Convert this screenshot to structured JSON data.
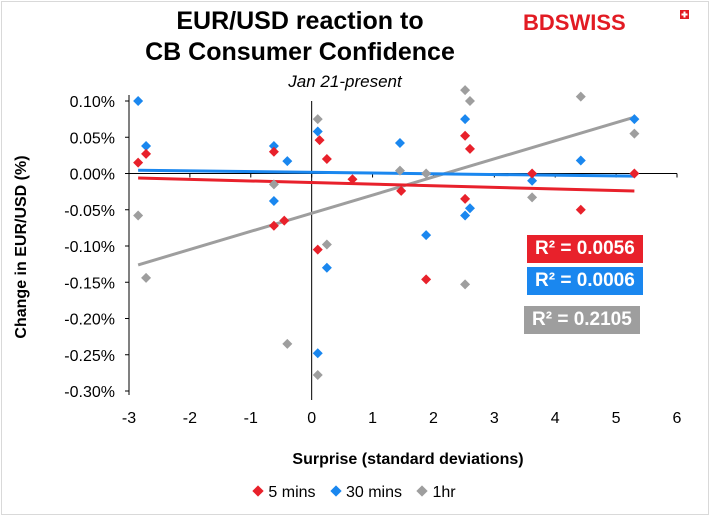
{
  "title_line1": "EUR/USD reaction to",
  "title_line2": "CB Consumer Confidence",
  "subtitle": "Jan 21-present",
  "logo": "BDSWISS",
  "colors": {
    "5 mins": "#e8212b",
    "30 mins": "#1a87ef",
    "1hr": "#9e9e9e",
    "logo": "#e21b23"
  },
  "r2_labels": [
    "R² = 0.0056",
    "R² = 0.0006",
    "R² = 0.2105"
  ],
  "legend": [
    "5 mins",
    "30 mins",
    "1hr"
  ],
  "chart_data": {
    "type": "scatter",
    "title": "EUR/USD reaction to CB Consumer Confidence",
    "subtitle": "Jan 21-present",
    "xlabel": "Surprise (standard deviations)",
    "ylabel": "Change in EUR/USD  (%)",
    "xlim": [
      -3,
      6
    ],
    "ylim": [
      -0.3,
      0.1
    ],
    "xticks": [
      "-3",
      "-2",
      "-1",
      "0",
      "1",
      "2",
      "3",
      "4",
      "5",
      "6"
    ],
    "yticks": [
      "0.10%",
      "0.05%",
      "0.00%",
      "-0.05%",
      "-0.10%",
      "-0.15%",
      "-0.20%",
      "-0.25%",
      "-0.30%"
    ],
    "legend_position": "bottom",
    "grid": false,
    "series": [
      {
        "name": "5 mins",
        "points": [
          [
            -2.85,
            0.015
          ],
          [
            -2.72,
            0.027
          ],
          [
            -0.62,
            0.03
          ],
          [
            -0.62,
            -0.072
          ],
          [
            -0.45,
            -0.065
          ],
          [
            0.1,
            -0.105
          ],
          [
            0.13,
            0.046
          ],
          [
            0.25,
            0.02
          ],
          [
            0.67,
            -0.008
          ],
          [
            1.47,
            -0.024
          ],
          [
            1.88,
            -0.146
          ],
          [
            2.52,
            0.052
          ],
          [
            2.52,
            -0.035
          ],
          [
            2.6,
            0.034
          ],
          [
            3.62,
            0.0
          ],
          [
            4.42,
            -0.05
          ],
          [
            5.3,
            0.0
          ]
        ],
        "trendline": {
          "intercept": -0.0125,
          "slope": -0.0022,
          "r2": "0.0056"
        }
      },
      {
        "name": "30 mins",
        "points": [
          [
            -2.85,
            0.1
          ],
          [
            -2.72,
            0.038
          ],
          [
            -0.62,
            0.038
          ],
          [
            -0.62,
            -0.038
          ],
          [
            -0.4,
            0.017
          ],
          [
            0.1,
            0.058
          ],
          [
            0.1,
            -0.248
          ],
          [
            0.25,
            -0.13
          ],
          [
            1.45,
            0.042
          ],
          [
            1.88,
            -0.085
          ],
          [
            2.52,
            0.075
          ],
          [
            2.52,
            -0.058
          ],
          [
            2.6,
            -0.048
          ],
          [
            3.62,
            -0.01
          ],
          [
            4.42,
            0.018
          ],
          [
            5.3,
            0.075
          ]
        ],
        "trendline": {
          "intercept": 0.0016,
          "slope": -0.001,
          "r2": "0.0006"
        }
      },
      {
        "name": "1hr",
        "points": [
          [
            -2.85,
            -0.058
          ],
          [
            -2.72,
            -0.144
          ],
          [
            -0.62,
            -0.015
          ],
          [
            -0.4,
            -0.235
          ],
          [
            0.1,
            0.075
          ],
          [
            0.1,
            -0.278
          ],
          [
            0.25,
            -0.098
          ],
          [
            1.45,
            0.004
          ],
          [
            1.88,
            0.0
          ],
          [
            2.52,
            0.115
          ],
          [
            2.6,
            0.1
          ],
          [
            2.52,
            -0.153
          ],
          [
            3.62,
            -0.033
          ],
          [
            4.42,
            0.106
          ],
          [
            5.3,
            0.055
          ]
        ],
        "trendline": {
          "intercept": -0.0548,
          "slope": 0.025,
          "r2": "0.2105"
        }
      }
    ]
  }
}
